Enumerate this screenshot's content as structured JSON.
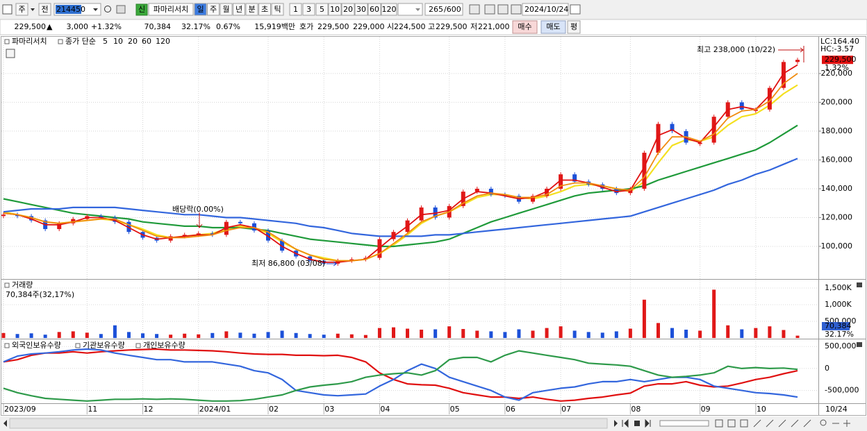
{
  "toolbar": {
    "code_type": "주",
    "market": "전",
    "code": "214450",
    "credit": "신",
    "name": "파마리서치",
    "periods": [
      "일",
      "주",
      "월",
      "년",
      "분",
      "초",
      "틱"
    ],
    "intervals": [
      "1",
      "3",
      "5",
      "10",
      "20",
      "30",
      "60",
      "120"
    ],
    "count": "265",
    "max_count": "/600",
    "date": "2024/10/24"
  },
  "quote_bar": {
    "price": "229,500",
    "arrow": "▲",
    "change": "3,000",
    "change_pct": "+1.32%",
    "volume": "70,384",
    "volume_ratio": "32.17%",
    "turnover": "0.67%",
    "amount": "15,919백만",
    "ask_label": "호가",
    "ask": "229,500",
    "bid": "229,000",
    "open_label": "시",
    "open": "224,500",
    "high_label": "고",
    "high": "229,500",
    "low_label": "저",
    "low": "221,000",
    "buy": "매수",
    "sell": "매도",
    "avg": "평"
  },
  "chart_data": [
    {
      "type": "candle-line",
      "legend_title": "파마리서치",
      "legend_label": "종가 단순",
      "categories": [
        "2023/09",
        null,
        null,
        null,
        null,
        null,
        "11",
        null,
        null,
        null,
        "12",
        null,
        null,
        null,
        "2024/01",
        null,
        null,
        null,
        null,
        "02",
        null,
        null,
        null,
        "03",
        null,
        null,
        null,
        "04",
        null,
        null,
        null,
        null,
        "05",
        null,
        null,
        null,
        "06",
        null,
        null,
        null,
        "07",
        null,
        null,
        null,
        null,
        "08",
        null,
        null,
        null,
        null,
        "09",
        null,
        null,
        null,
        "10",
        null,
        null,
        null
      ],
      "last_date": "10/24",
      "values": [
        122000,
        121000,
        118000,
        112000,
        116000,
        119000,
        121000,
        120000,
        117000,
        110000,
        106000,
        104000,
        107000,
        108000,
        109000,
        108000,
        117000,
        116000,
        111000,
        104000,
        97000,
        93000,
        90000,
        88000,
        90000,
        91000,
        92000,
        105000,
        110000,
        118000,
        127000,
        120000,
        128000,
        138000,
        140000,
        136000,
        135000,
        131000,
        135000,
        140000,
        150000,
        145000,
        143000,
        140000,
        137000,
        140000,
        165000,
        185000,
        180000,
        172000,
        172000,
        190000,
        200000,
        195000,
        195000,
        210000,
        228000,
        229500
      ],
      "up_color": "#e01818",
      "down_color": "#1c50d8",
      "series": [
        {
          "name": "5",
          "color": "#e01010",
          "values": [
            123000,
            122000,
            119000,
            115000,
            115000,
            117000,
            120000,
            120000,
            118000,
            113000,
            108000,
            105000,
            106000,
            107000,
            108000,
            108000,
            113000,
            115000,
            113000,
            107000,
            100000,
            95000,
            91000,
            89000,
            89000,
            90000,
            91000,
            99000,
            107000,
            114000,
            122000,
            123000,
            125000,
            133000,
            138000,
            137000,
            135000,
            133000,
            134000,
            138000,
            146000,
            146000,
            144000,
            141000,
            138000,
            139000,
            155000,
            177000,
            181000,
            175000,
            172000,
            183000,
            195000,
            197000,
            195000,
            205000,
            220000,
            226000
          ]
        },
        {
          "name": "10",
          "color": "#f08c10",
          "values": [
            123000,
            122000,
            120000,
            117000,
            116000,
            117000,
            118000,
            119000,
            119000,
            115000,
            111000,
            107000,
            106000,
            106000,
            107000,
            108000,
            111000,
            113000,
            113000,
            110000,
            104000,
            98000,
            94000,
            91000,
            90000,
            90000,
            91000,
            95000,
            102000,
            109000,
            117000,
            121000,
            124000,
            130000,
            135000,
            137000,
            136000,
            134000,
            134000,
            136000,
            142000,
            144000,
            144000,
            142000,
            140000,
            139000,
            148000,
            165000,
            176000,
            176000,
            173000,
            178000,
            189000,
            194000,
            195000,
            201000,
            213000,
            220000
          ]
        },
        {
          "name": "20",
          "color": "#f4e020",
          "values": [
            124000,
            122000,
            120000,
            117000,
            116000,
            117000,
            118000,
            119000,
            118000,
            115000,
            112000,
            108000,
            106000,
            107000,
            108000,
            109000,
            112000,
            114000,
            113000,
            109000,
            103000,
            98000,
            94000,
            92000,
            90000,
            90000,
            91000,
            95000,
            101000,
            108000,
            116000,
            121000,
            124000,
            129000,
            134000,
            136000,
            136000,
            134000,
            133000,
            135000,
            138000,
            142000,
            143000,
            142000,
            140000,
            138000,
            145000,
            158000,
            170000,
            174000,
            173000,
            176000,
            184000,
            190000,
            192000,
            198000,
            206000,
            212000
          ]
        },
        {
          "name": "60",
          "color": "#1f9a3a",
          "values": [
            133000,
            131000,
            129000,
            127000,
            125000,
            123000,
            122000,
            121000,
            120000,
            119000,
            117000,
            116000,
            115000,
            114000,
            114000,
            113000,
            113000,
            113000,
            112000,
            111000,
            109000,
            107000,
            105000,
            104000,
            103000,
            102000,
            101000,
            100000,
            100000,
            101000,
            102000,
            103000,
            105000,
            109000,
            113000,
            117000,
            120000,
            123000,
            126000,
            129000,
            132000,
            135000,
            137000,
            138000,
            139000,
            140000,
            142000,
            146000,
            149000,
            152000,
            155000,
            158000,
            161000,
            164000,
            167000,
            172000,
            178000,
            184000
          ]
        },
        {
          "name": "120",
          "color": "#3366dd",
          "values": [
            124000,
            125000,
            126000,
            126000,
            126000,
            127000,
            127000,
            127000,
            127000,
            126000,
            125000,
            124000,
            123000,
            122000,
            122000,
            121000,
            120000,
            120000,
            119000,
            118000,
            117000,
            116000,
            114000,
            113000,
            111000,
            109000,
            108000,
            107000,
            107000,
            107000,
            107000,
            108000,
            108000,
            109000,
            110000,
            111000,
            112000,
            113000,
            114000,
            115000,
            116000,
            117000,
            118000,
            119000,
            120000,
            121000,
            124000,
            127000,
            130000,
            133000,
            136000,
            139000,
            143000,
            146000,
            150000,
            153000,
            157000,
            161000
          ]
        }
      ],
      "ylim": [
        78300,
        245500
      ],
      "yticks": [
        {
          "value": 100000,
          "label": "100,000"
        },
        {
          "value": 120000,
          "label": "120,000"
        },
        {
          "value": 140000,
          "label": "140,000"
        },
        {
          "value": 160000,
          "label": "160,000"
        },
        {
          "value": 180000,
          "label": "180,000"
        },
        {
          "value": 200000,
          "label": "200,000"
        },
        {
          "value": 220000,
          "label": "220,000"
        }
      ],
      "grid": true,
      "annotations": {
        "high": "최고 238,000 (10/22)",
        "low": "최저 86,800 (03/08)",
        "dividend": "배당락(0.00%)"
      },
      "lc": "LC:164.40",
      "hc": "HC:-3.57",
      "current": {
        "value": 229500,
        "label": "229,500"
      },
      "current_change": "1.32%"
    },
    {
      "type": "bar",
      "title": "거래량",
      "subtitle": "70,384주(32,17%)",
      "values": [
        150000,
        120000,
        140000,
        100000,
        180000,
        200000,
        160000,
        120000,
        380000,
        180000,
        140000,
        120000,
        100000,
        130000,
        110000,
        150000,
        200000,
        160000,
        130000,
        180000,
        220000,
        150000,
        120000,
        100000,
        130000,
        110000,
        90000,
        300000,
        320000,
        280000,
        250000,
        260000,
        350000,
        270000,
        220000,
        200000,
        180000,
        260000,
        220000,
        300000,
        350000,
        220000,
        180000,
        160000,
        200000,
        280000,
        1150000,
        450000,
        300000,
        250000,
        220000,
        1450000,
        380000,
        260000,
        300000,
        350000,
        240000,
        70384
      ],
      "ylim": [
        0,
        1708000
      ],
      "yticks": [
        {
          "value": 500000,
          "label": "500,000"
        },
        {
          "value": 1000000,
          "label": "1,000K"
        },
        {
          "value": 1500000,
          "label": "1,500K"
        }
      ],
      "current": {
        "value": 70384,
        "label": "70,384"
      },
      "current_pct": "32.17%"
    },
    {
      "type": "line",
      "series": [
        {
          "name": "외국인보유수량",
          "color": "#e01010",
          "values": [
            150000,
            200000,
            300000,
            350000,
            350000,
            380000,
            350000,
            380000,
            400000,
            420000,
            430000,
            440000,
            420000,
            420000,
            410000,
            400000,
            380000,
            350000,
            330000,
            320000,
            320000,
            300000,
            300000,
            290000,
            300000,
            250000,
            150000,
            -100000,
            -250000,
            -350000,
            -370000,
            -380000,
            -450000,
            -550000,
            -600000,
            -650000,
            -650000,
            -680000,
            -650000,
            -700000,
            -740000,
            -720000,
            -680000,
            -650000,
            -600000,
            -560000,
            -400000,
            -350000,
            -350000,
            -300000,
            -380000,
            -420000,
            -400000,
            -330000,
            -250000,
            -200000,
            -120000,
            -50000
          ]
        },
        {
          "name": "기관보유수량",
          "color": "#3366dd",
          "values": [
            150000,
            280000,
            330000,
            350000,
            380000,
            420000,
            440000,
            420000,
            350000,
            300000,
            250000,
            200000,
            200000,
            150000,
            150000,
            150000,
            100000,
            50000,
            -50000,
            -100000,
            -250000,
            -500000,
            -550000,
            -600000,
            -620000,
            -600000,
            -580000,
            -400000,
            -250000,
            -50000,
            100000,
            0,
            -200000,
            -300000,
            -400000,
            -500000,
            -650000,
            -720000,
            -550000,
            -500000,
            -450000,
            -420000,
            -350000,
            -300000,
            -300000,
            -250000,
            -300000,
            -250000,
            -200000,
            -200000,
            -250000,
            -400000,
            -450000,
            -500000,
            -550000,
            -570000,
            -600000,
            -650000
          ]
        },
        {
          "name": "개인보유수량",
          "color": "#2e9a4a",
          "values": [
            -450000,
            -550000,
            -620000,
            -680000,
            -700000,
            -720000,
            -740000,
            -720000,
            -700000,
            -700000,
            -690000,
            -700000,
            -690000,
            -700000,
            -720000,
            -740000,
            -740000,
            -730000,
            -700000,
            -650000,
            -600000,
            -500000,
            -420000,
            -380000,
            -350000,
            -300000,
            -200000,
            -150000,
            -120000,
            -100000,
            -150000,
            -50000,
            200000,
            250000,
            250000,
            150000,
            300000,
            400000,
            350000,
            300000,
            250000,
            200000,
            120000,
            100000,
            80000,
            50000,
            -50000,
            -150000,
            -200000,
            -180000,
            -150000,
            -100000,
            50000,
            0,
            20000,
            0,
            10000,
            -20000
          ]
        }
      ],
      "ylim": [
        -790000,
        645000
      ],
      "yticks": [
        {
          "value": 500000,
          "label": "500,000"
        },
        0,
        {
          "value": -500000,
          "label": "-500,000"
        }
      ]
    }
  ]
}
